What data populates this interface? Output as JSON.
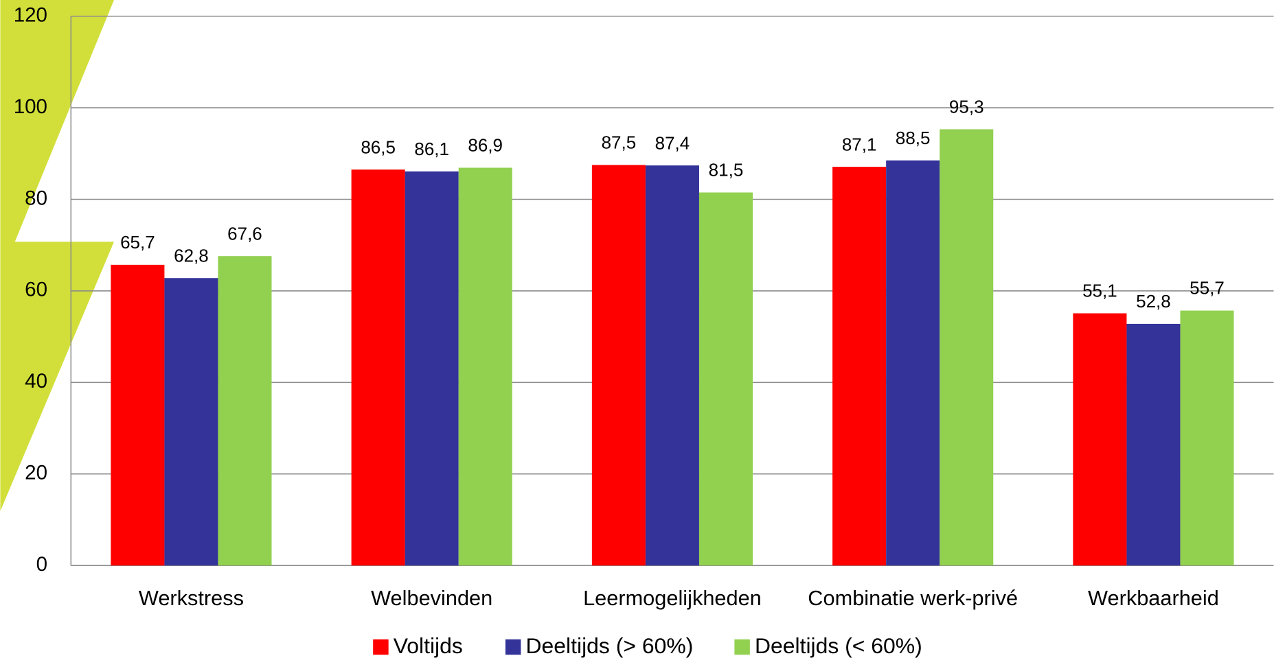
{
  "chart_data": {
    "type": "bar",
    "categories": [
      "Werkstress",
      "Welbevinden",
      "Leermogelijkheden",
      "Combinatie werk-privé",
      "Werkbaarheid"
    ],
    "series": [
      {
        "name": "Voltijds",
        "color": "#ff0000",
        "values": [
          65.7,
          86.5,
          87.5,
          87.1,
          55.1
        ],
        "value_labels": [
          "65,7",
          "86,5",
          "87,5",
          "87,1",
          "55,1"
        ]
      },
      {
        "name": "Deeltijds (> 60%)",
        "color": "#333399",
        "values": [
          62.8,
          86.1,
          87.4,
          88.5,
          52.8
        ],
        "value_labels": [
          "62,8",
          "86,1",
          "87,4",
          "88,5",
          "52,8"
        ]
      },
      {
        "name": "Deeltijds (< 60%)",
        "color": "#92d050",
        "values": [
          67.6,
          86.9,
          81.5,
          95.3,
          55.7
        ],
        "value_labels": [
          "67,6",
          "86,9",
          "81,5",
          "95,3",
          "55,7"
        ]
      }
    ],
    "ylim": [
      0,
      120
    ],
    "yticks": [
      0,
      20,
      40,
      60,
      80,
      100,
      120
    ],
    "grid": true,
    "legend": "bottom"
  }
}
